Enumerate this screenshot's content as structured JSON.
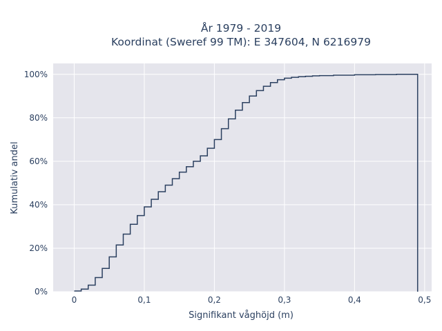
{
  "chart_data": {
    "type": "line",
    "step": true,
    "title_line1": "År 1979 - 2019",
    "title_line2": "Koordinat (Sweref 99 TM): E 347604, N 6216979",
    "xlabel": "Signifikant våghöjd (m)",
    "ylabel": "Kumulativ andel",
    "xlim": [
      -0.03,
      0.51
    ],
    "ylim": [
      0,
      1.05
    ],
    "x_ticks": [
      0,
      0.1,
      0.2,
      0.3,
      0.4,
      0.5
    ],
    "x_tick_labels": [
      "0",
      "0,1",
      "0,2",
      "0,3",
      "0,4",
      "0,5"
    ],
    "y_ticks": [
      0,
      0.2,
      0.4,
      0.6,
      0.8,
      1.0
    ],
    "y_tick_labels": [
      "0%",
      "20%",
      "40%",
      "60%",
      "80%",
      "100%"
    ],
    "grid": true,
    "line_color": "#2a3f5f",
    "plot_bg": "#e5e5ec",
    "x": [
      0,
      0.01,
      0.02,
      0.03,
      0.04,
      0.05,
      0.06,
      0.07,
      0.08,
      0.09,
      0.1,
      0.11,
      0.12,
      0.13,
      0.14,
      0.15,
      0.16,
      0.17,
      0.18,
      0.19,
      0.2,
      0.21,
      0.22,
      0.23,
      0.24,
      0.25,
      0.26,
      0.27,
      0.28,
      0.29,
      0.3,
      0.31,
      0.32,
      0.33,
      0.34,
      0.35,
      0.37,
      0.4,
      0.43,
      0.46,
      0.49
    ],
    "y": [
      0.003,
      0.012,
      0.03,
      0.065,
      0.107,
      0.16,
      0.215,
      0.265,
      0.31,
      0.35,
      0.39,
      0.425,
      0.46,
      0.49,
      0.52,
      0.55,
      0.575,
      0.6,
      0.625,
      0.66,
      0.7,
      0.75,
      0.795,
      0.835,
      0.87,
      0.9,
      0.925,
      0.945,
      0.962,
      0.975,
      0.982,
      0.986,
      0.989,
      0.991,
      0.993,
      0.994,
      0.996,
      0.998,
      0.999,
      1.0,
      0.0
    ]
  }
}
